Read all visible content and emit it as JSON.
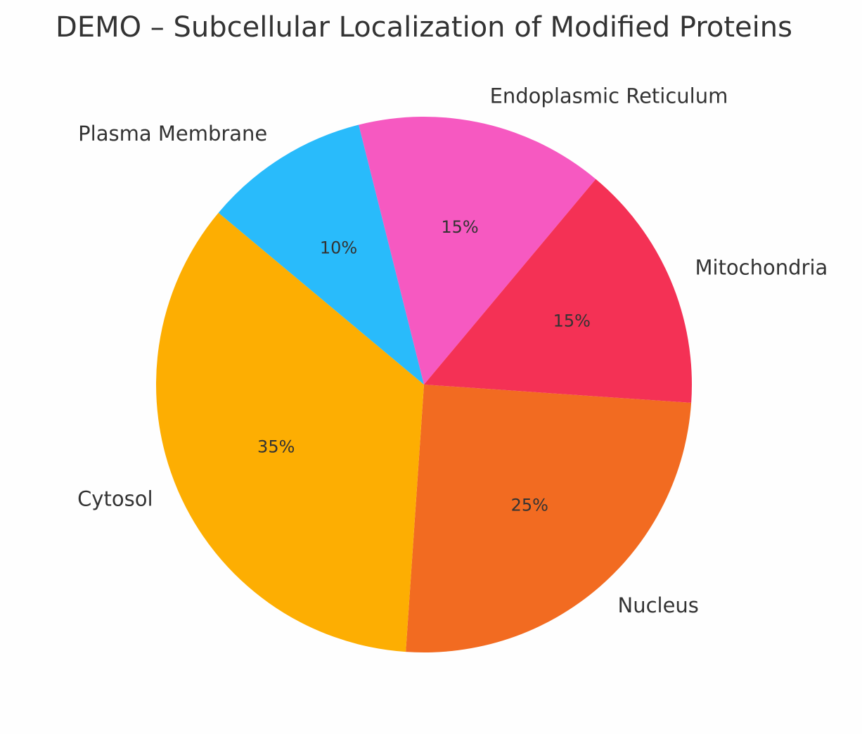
{
  "chart_data": {
    "type": "pie",
    "title": "DEMO – Subcellular Localization of Modified Proteins",
    "categories": [
      "Nucleus",
      "Cytosol",
      "Plasma Membrane",
      "Endoplasmic Reticulum",
      "Mitochondria"
    ],
    "values": [
      25,
      35,
      10,
      15,
      15
    ],
    "value_labels": [
      "25%",
      "35%",
      "10%",
      "15%",
      "15%"
    ],
    "colors": [
      "#f26b21",
      "#fdae02",
      "#29bbfb",
      "#f659c1",
      "#f43155"
    ]
  }
}
